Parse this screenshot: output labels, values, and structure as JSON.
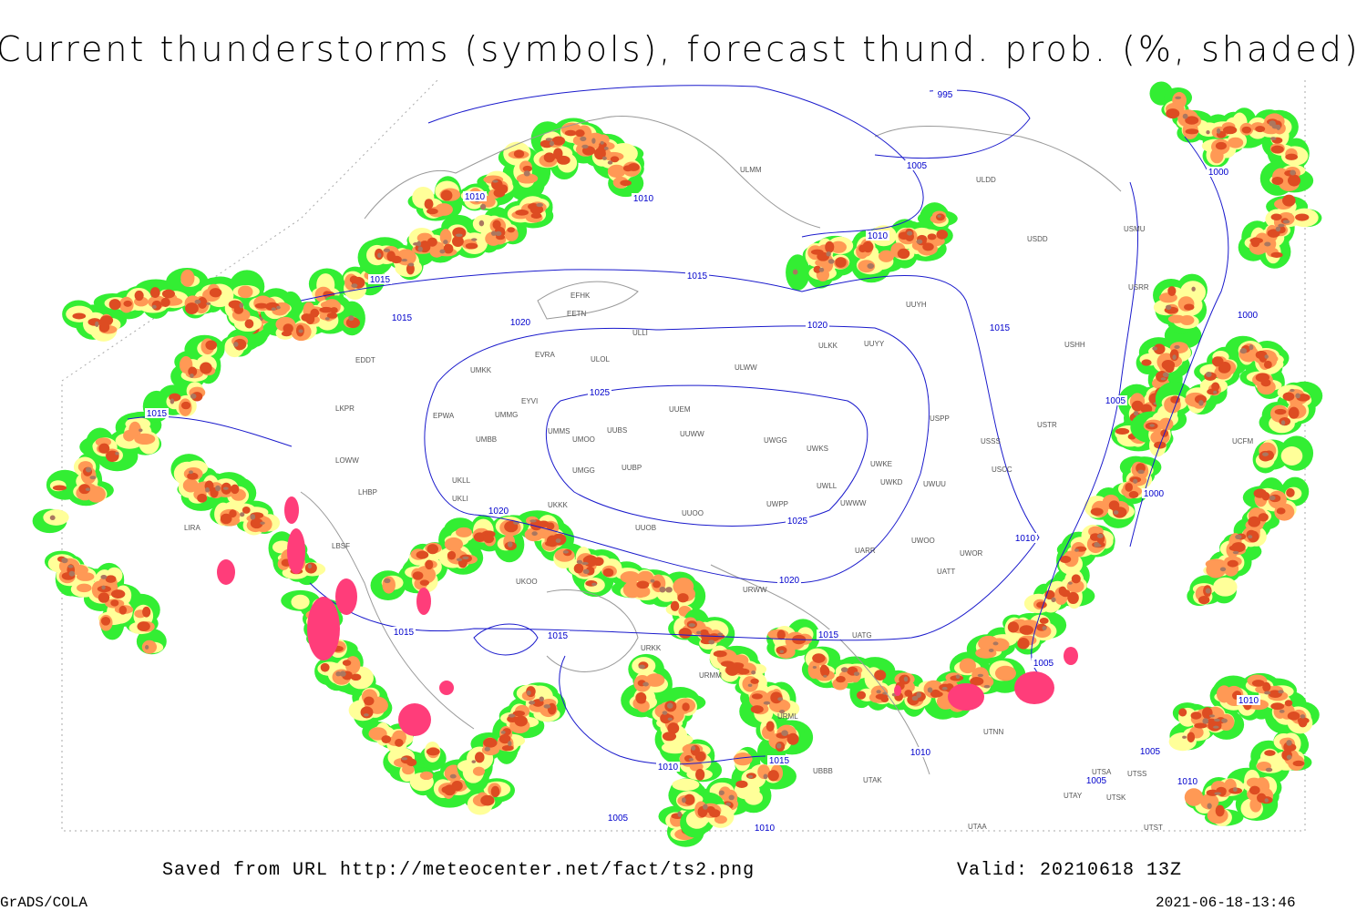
{
  "header": {
    "title": "Current thunderstorms (symbols), forecast thund. prob. (%, shaded)"
  },
  "footer": {
    "source": "Saved from URL http://meteocenter.net/fact/ts2.png",
    "valid": "Valid: 20210618 13Z",
    "software": "GrADS/COLA",
    "timestamp": "2021-06-18-13:46"
  },
  "map": {
    "isobar_labels": [
      995,
      1010,
      1010,
      1005,
      1000,
      1010,
      1015,
      1015,
      1015,
      1020,
      1020,
      1015,
      1000,
      1015,
      1025,
      1005,
      1020,
      1025,
      1000,
      1010,
      1020,
      1015,
      1015,
      1015,
      1005,
      1010,
      1010,
      1010,
      1015,
      1005,
      1005,
      1010,
      1005,
      1010
    ],
    "stations": [
      "ULMM",
      "ULDD",
      "USDD",
      "USMU",
      "USRR",
      "UUYH",
      "EFHK",
      "EETN",
      "ULLI",
      "EVRA",
      "ULOL",
      "ULWW",
      "ULKK",
      "UUYY",
      "UMKK",
      "EYVI",
      "UMMG",
      "EPWA",
      "UUEM",
      "UUWW",
      "UWGG",
      "UWKS",
      "UWKE",
      "UMMS",
      "UMOO",
      "UUBS",
      "UMBB",
      "UMGG",
      "UUBP",
      "UKLL",
      "UKLI",
      "UKKK",
      "UUOO",
      "UWPP",
      "UWWW",
      "USSS",
      "USCC",
      "UUOB",
      "USTR",
      "USHH",
      "USPP",
      "UWUU",
      "UWOO",
      "UWOR",
      "UATT",
      "UARR",
      "URWW",
      "UATG",
      "URKK",
      "UBBB",
      "UTAK",
      "UTNN",
      "UTSA",
      "UTSS",
      "UTAY",
      "UTSK",
      "UTAA",
      "UTST",
      "URML",
      "URMM",
      "LKPR",
      "LOWW",
      "LHBP",
      "EDDT",
      "LIRA",
      "UWLL",
      "UWKD",
      "UKOO",
      "LBSF",
      "UCFM"
    ]
  }
}
